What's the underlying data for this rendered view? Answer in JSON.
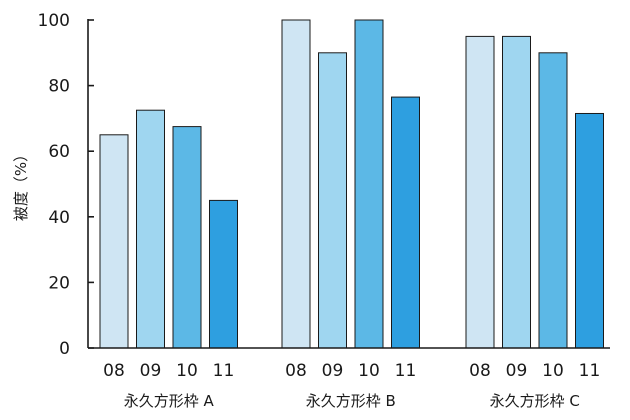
{
  "chart_data": {
    "type": "bar",
    "ylabel": "被度（%）",
    "ylim": [
      0,
      100
    ],
    "yticks": [
      0,
      20,
      40,
      60,
      80,
      100
    ],
    "grid": false,
    "series_colors": [
      "#cfe5f3",
      "#9fd6f0",
      "#5cb8e6",
      "#2e9fe0"
    ],
    "groups": [
      {
        "name": "永久方形枠 A",
        "categories": [
          "08",
          "09",
          "10",
          "11"
        ],
        "values": [
          65,
          72.5,
          67.5,
          45
        ]
      },
      {
        "name": "永久方形枠 B",
        "categories": [
          "08",
          "09",
          "10",
          "11"
        ],
        "values": [
          100,
          90,
          100,
          76.5
        ]
      },
      {
        "name": "永久方形枠 C",
        "categories": [
          "08",
          "09",
          "10",
          "11"
        ],
        "values": [
          95,
          95,
          90,
          71.5
        ]
      }
    ]
  }
}
